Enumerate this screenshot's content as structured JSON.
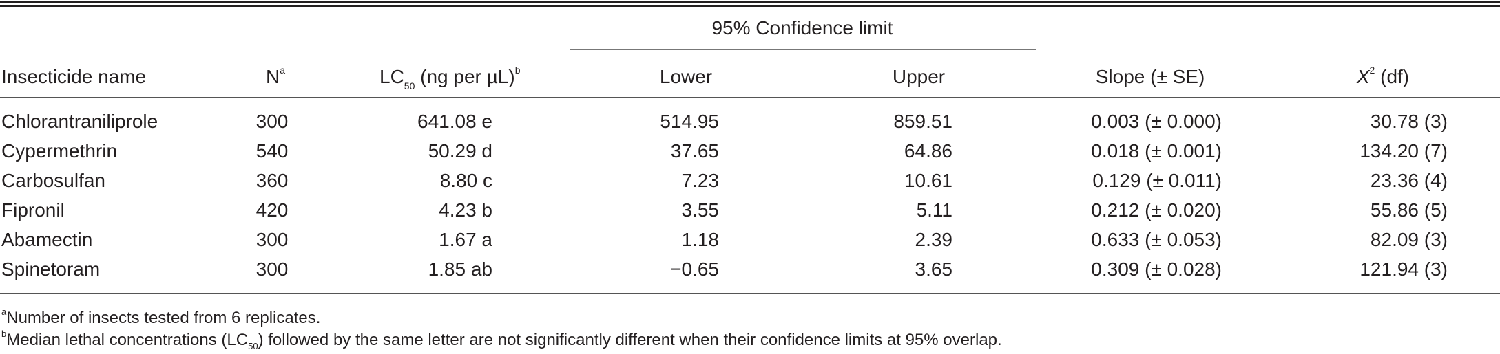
{
  "table": {
    "group_header": "95% Confidence limit",
    "headers": {
      "name": "Insecticide name",
      "n": "N",
      "n_sup": "a",
      "lc50_pre": "LC",
      "lc50_sub": "50",
      "lc50_post": " (ng per µL)",
      "lc50_sup": "b",
      "lower": "Lower",
      "upper": "Upper",
      "slope": "Slope (± SE)",
      "chi_sym": "X",
      "chi_sup": "2",
      "chi_post": " (df)"
    },
    "rows": [
      {
        "name": "Chlorantraniliprole",
        "n": "300",
        "lc50": "641.08 e",
        "lower": "514.95",
        "upper": "859.51",
        "slope": "0.003 (± 0.000)",
        "chi": "30.78 (3)"
      },
      {
        "name": "Cypermethrin",
        "n": "540",
        "lc50": "50.29 d",
        "lower": "37.65",
        "upper": "64.86",
        "slope": "0.018 (± 0.001)",
        "chi": "134.20 (7)"
      },
      {
        "name": "Carbosulfan",
        "n": "360",
        "lc50": "8.80 c",
        "lower": "7.23",
        "upper": "10.61",
        "slope": "0.129 (± 0.011)",
        "chi": "23.36 (4)"
      },
      {
        "name": "Fipronil",
        "n": "420",
        "lc50": "4.23 b",
        "lower": "3.55",
        "upper": "5.11",
        "slope": "0.212 (± 0.020)",
        "chi": "55.86 (5)"
      },
      {
        "name": "Abamectin",
        "n": "300",
        "lc50": "1.67 a",
        "lower": "1.18",
        "upper": "2.39",
        "slope": "0.633 (± 0.053)",
        "chi": "82.09 (3)"
      },
      {
        "name": "Spinetoram",
        "n": "300",
        "lc50": "1.85 ab",
        "lower": "−0.65",
        "upper": "3.65",
        "slope": "0.309 (± 0.028)",
        "chi": "121.94 (3)"
      }
    ]
  },
  "footnotes": {
    "a_mark": "a",
    "a_text": "Number of insects tested from 6 replicates.",
    "b_mark": "b",
    "b_text_pre": "Median lethal concentrations (LC",
    "b_text_sub": "50",
    "b_text_post": ") followed by the same letter are not significantly different when their confidence limits at 95% overlap."
  }
}
